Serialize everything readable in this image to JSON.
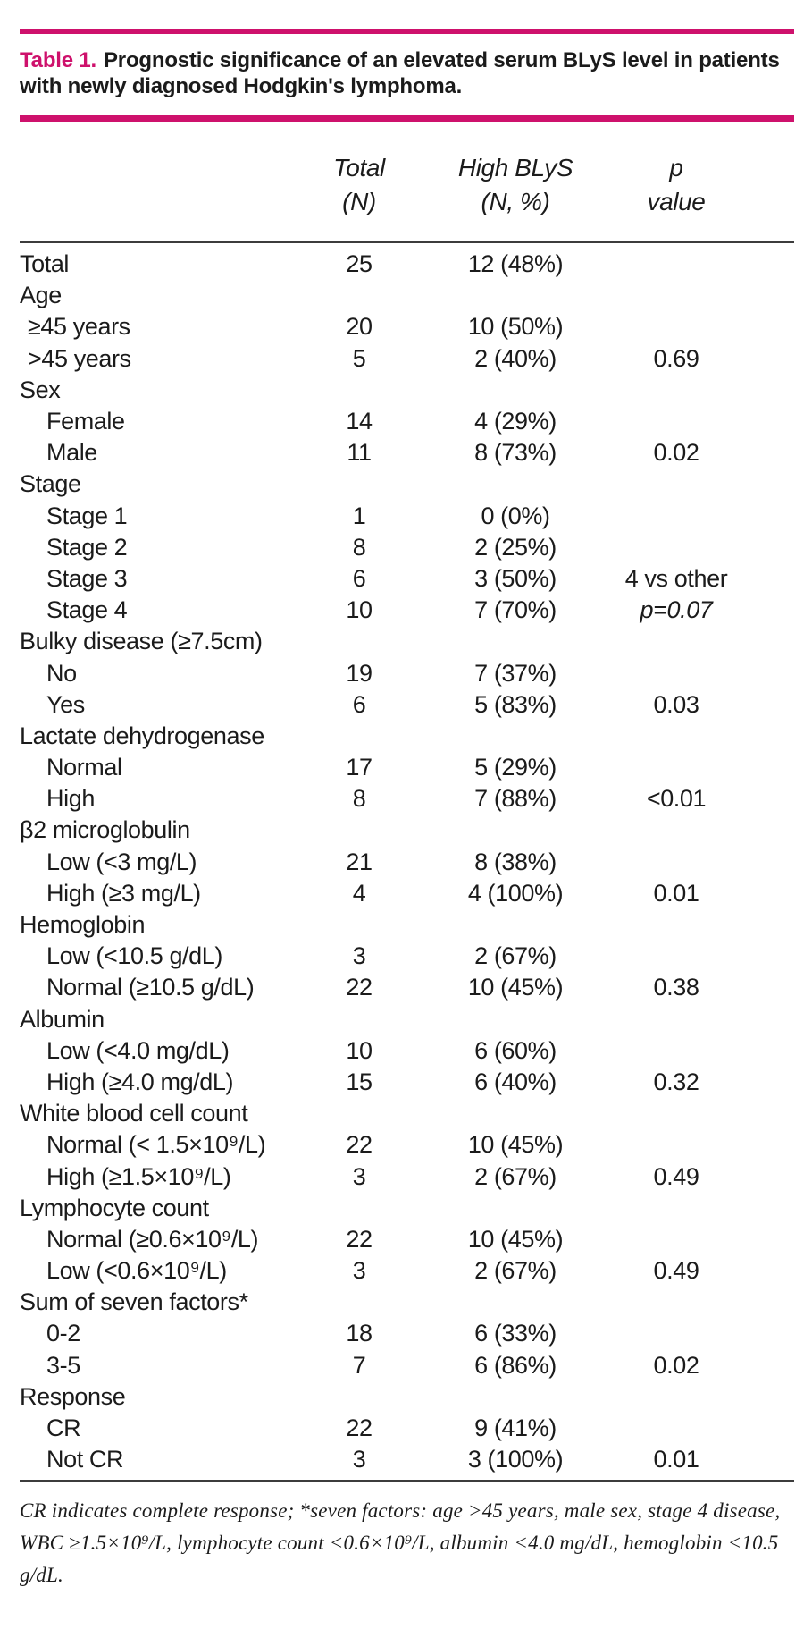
{
  "colors": {
    "accent": "#ce116c",
    "text": "#1b1b1b",
    "rule": "#3c3c3c"
  },
  "title": {
    "label": "Table 1.",
    "text": "Prognostic significance of an elevated serum BLyS level in patients with newly diagnosed Hodgkin's lymphoma."
  },
  "table": {
    "header": {
      "total": {
        "line1": "Total",
        "line2": "(N)"
      },
      "high": {
        "line1": "High BLyS",
        "line2": "(N, %)"
      },
      "p": {
        "line1": "p",
        "line2": "value"
      }
    },
    "rows": [
      {
        "label": "Total",
        "indent": 0,
        "total": "25",
        "high": "12 (48%)",
        "p": ""
      },
      {
        "label": "Age",
        "indent": 0,
        "total": "",
        "high": "",
        "p": ""
      },
      {
        "label": "≥45 years",
        "indent": 1,
        "total": "20",
        "high": "10 (50%)",
        "p": ""
      },
      {
        "label": ">45 years",
        "indent": 1,
        "total": "5",
        "high": "2 (40%)",
        "p": "0.69"
      },
      {
        "label": "Sex",
        "indent": 0,
        "total": "",
        "high": "",
        "p": ""
      },
      {
        "label": "Female",
        "indent": 2,
        "total": "14",
        "high": "4 (29%)",
        "p": ""
      },
      {
        "label": "Male",
        "indent": 2,
        "total": "11",
        "high": "8 (73%)",
        "p": "0.02"
      },
      {
        "label": "Stage",
        "indent": 0,
        "total": "",
        "high": "",
        "p": ""
      },
      {
        "label": "Stage 1",
        "indent": 2,
        "total": "1",
        "high": "0 (0%)",
        "p": ""
      },
      {
        "label": "Stage 2",
        "indent": 2,
        "total": "8",
        "high": "2 (25%)",
        "p": ""
      },
      {
        "label": "Stage 3",
        "indent": 2,
        "total": "6",
        "high": "3 (50%)",
        "p": "4 vs other"
      },
      {
        "label": "Stage 4",
        "indent": 2,
        "total": "10",
        "high": "7 (70%)",
        "p": "p=0.07",
        "p_style": "italic"
      },
      {
        "label": "Bulky disease (≥7.5cm)",
        "indent": 0,
        "total": "",
        "high": "",
        "p": ""
      },
      {
        "label": "No",
        "indent": 2,
        "total": "19",
        "high": "7 (37%)",
        "p": ""
      },
      {
        "label": "Yes",
        "indent": 2,
        "total": "6",
        "high": "5 (83%)",
        "p": "0.03"
      },
      {
        "label": "Lactate dehydrogenase",
        "indent": 0,
        "total": "",
        "high": "",
        "p": ""
      },
      {
        "label": "Normal",
        "indent": 2,
        "total": "17",
        "high": "5 (29%)",
        "p": ""
      },
      {
        "label": "High",
        "indent": 2,
        "total": "8",
        "high": "7 (88%)",
        "p": "<0.01"
      },
      {
        "label": "β2 microglobulin",
        "indent": 0,
        "total": "",
        "high": "",
        "p": ""
      },
      {
        "label": "Low (<3 mg/L)",
        "indent": 2,
        "total": "21",
        "high": "8 (38%)",
        "p": ""
      },
      {
        "label": "High (≥3 mg/L)",
        "indent": 2,
        "total": "4",
        "high": "4 (100%)",
        "p": "0.01"
      },
      {
        "label": "Hemoglobin",
        "indent": 0,
        "total": "",
        "high": "",
        "p": ""
      },
      {
        "label": "Low (<10.5 g/dL)",
        "indent": 2,
        "total": "3",
        "high": "2 (67%)",
        "p": ""
      },
      {
        "label": "Normal (≥10.5 g/dL)",
        "indent": 2,
        "total": "22",
        "high": "10 (45%)",
        "p": "0.38"
      },
      {
        "label": "Albumin",
        "indent": 0,
        "total": "",
        "high": "",
        "p": ""
      },
      {
        "label": "Low (<4.0 mg/dL)",
        "indent": 2,
        "total": "10",
        "high": "6 (60%)",
        "p": ""
      },
      {
        "label": "High (≥4.0 mg/dL)",
        "indent": 2,
        "total": "15",
        "high": "6 (40%)",
        "p": "0.32"
      },
      {
        "label": "White blood cell count",
        "indent": 0,
        "total": "",
        "high": "",
        "p": ""
      },
      {
        "label": "Normal (< 1.5×10⁹/L)",
        "indent": 2,
        "total": "22",
        "high": "10 (45%)",
        "p": ""
      },
      {
        "label": "High (≥1.5×10⁹/L)",
        "indent": 2,
        "total": "3",
        "high": "2 (67%)",
        "p": "0.49"
      },
      {
        "label": "Lymphocyte count",
        "indent": 0,
        "total": "",
        "high": "",
        "p": ""
      },
      {
        "label": "Normal (≥0.6×10⁹/L)",
        "indent": 2,
        "total": "22",
        "high": "10 (45%)",
        "p": ""
      },
      {
        "label": "Low (<0.6×10⁹/L)",
        "indent": 2,
        "total": "3",
        "high": "2 (67%)",
        "p": "0.49"
      },
      {
        "label": "Sum of seven factors*",
        "indent": 0,
        "total": "",
        "high": "",
        "p": ""
      },
      {
        "label": "0-2",
        "indent": 2,
        "total": "18",
        "high": "6 (33%)",
        "p": ""
      },
      {
        "label": "3-5",
        "indent": 2,
        "total": "7",
        "high": "6 (86%)",
        "p": "0.02"
      },
      {
        "label": "Response",
        "indent": 0,
        "total": "",
        "high": "",
        "p": ""
      },
      {
        "label": "CR",
        "indent": 2,
        "total": "22",
        "high": "9 (41%)",
        "p": ""
      },
      {
        "label": "Not CR",
        "indent": 2,
        "total": "3",
        "high": "3 (100%)",
        "p": "0.01"
      }
    ]
  },
  "footnote": "CR indicates complete response; *seven factors: age >45 years, male sex, stage 4 disease, WBC ≥1.5×10⁹/L, lymphocyte count <0.6×10⁹/L, albumin <4.0 mg/dL, hemoglobin <10.5 g/dL."
}
